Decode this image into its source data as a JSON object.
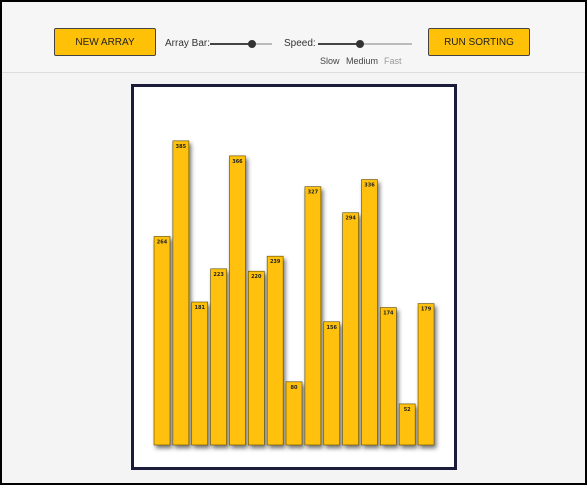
{
  "toolbar": {
    "new_array": "NEW ARRAY",
    "array_bar_label": "Array Bar:",
    "speed_label": "Speed:",
    "speed_options": [
      "Slow",
      "Medium",
      "Fast"
    ],
    "run_sorting": "RUN SORTING"
  },
  "array": [
    264,
    385,
    181,
    223,
    366,
    220,
    239,
    80,
    327,
    156,
    294,
    336,
    174,
    52,
    179
  ]
}
